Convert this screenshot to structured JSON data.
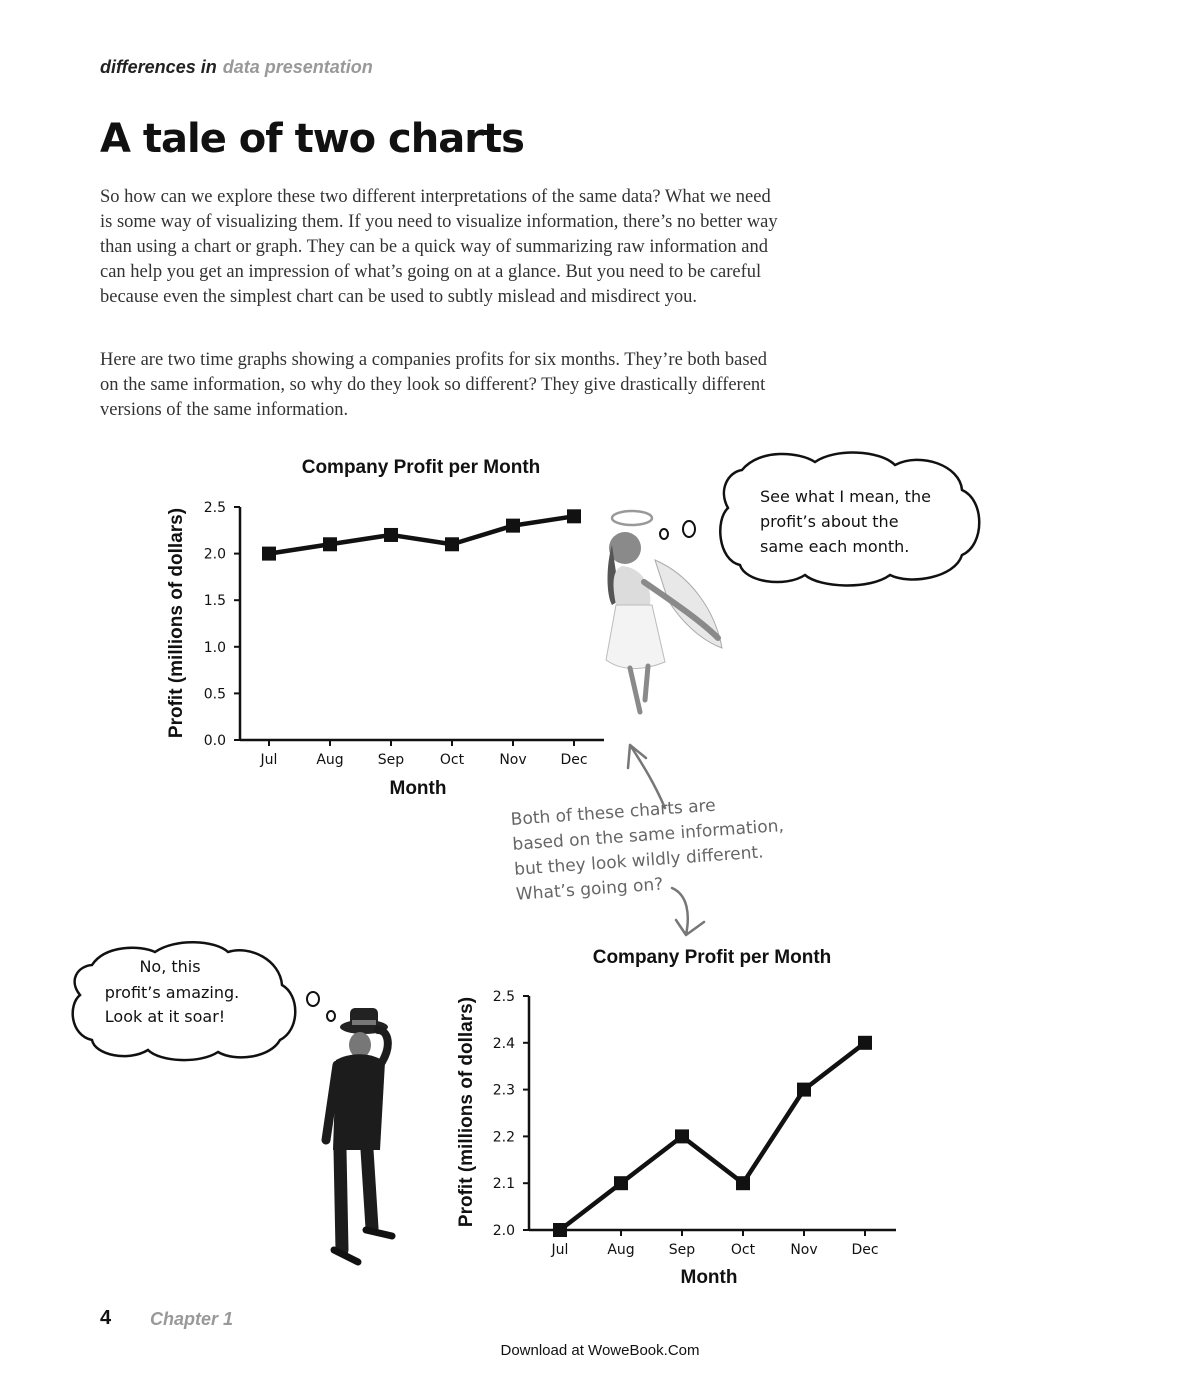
{
  "running_head": {
    "lead": "differences in",
    "topic": "data presentation"
  },
  "title": "A tale of two charts",
  "paragraphs": [
    "So how can we explore these two different interpretations of the same data? What we need is some way of visualizing them. If you need to visualize information, there’s no better way than using a chart or graph. They can be a quick way of summarizing raw information and can help you get an impression of what’s going on at a glance. But you need to be careful because even the simplest chart can be used to subtly mislead and misdirect you.",
    "Here are two time graphs showing a companies profits for six months. They’re both based on the same information, so why do they look so different? They give drastically different versions of the same information."
  ],
  "chart_data": [
    {
      "type": "line",
      "title": "Company Profit per Month",
      "xlabel": "Month",
      "ylabel": "Profit (millions of dollars)",
      "categories": [
        "Jul",
        "Aug",
        "Sep",
        "Oct",
        "Nov",
        "Dec"
      ],
      "values": [
        2.0,
        2.1,
        2.2,
        2.1,
        2.3,
        2.4
      ],
      "ylim": [
        0.0,
        2.5
      ],
      "yticks": [
        "0.0",
        "0.5",
        "1.0",
        "1.5",
        "2.0",
        "2.5"
      ],
      "grid": false
    },
    {
      "type": "line",
      "title": "Company Profit per Month",
      "xlabel": "Month",
      "ylabel": "Profit (millions of dollars)",
      "categories": [
        "Jul",
        "Aug",
        "Sep",
        "Oct",
        "Nov",
        "Dec"
      ],
      "values": [
        2.0,
        2.1,
        2.2,
        2.1,
        2.3,
        2.4
      ],
      "ylim": [
        2.0,
        2.5
      ],
      "yticks": [
        "2.0",
        "2.1",
        "2.2",
        "2.3",
        "2.4",
        "2.5"
      ],
      "grid": false
    }
  ],
  "bubbles": {
    "angel": [
      "See what I mean, the",
      "profit’s about the",
      "same each month."
    ],
    "gangster": [
      "No, this",
      "profit’s amazing.",
      "Look at it soar!"
    ]
  },
  "annotation": [
    "Both of these charts are",
    "based on the same information,",
    "but they look wildly different.",
    "What’s going on?"
  ],
  "footer": {
    "page_number": "4",
    "chapter": "Chapter 1",
    "download": "Download at WoweBook.Com"
  },
  "colors": {
    "ink": "#111111",
    "muted": "#999999",
    "annotation": "#666666"
  }
}
